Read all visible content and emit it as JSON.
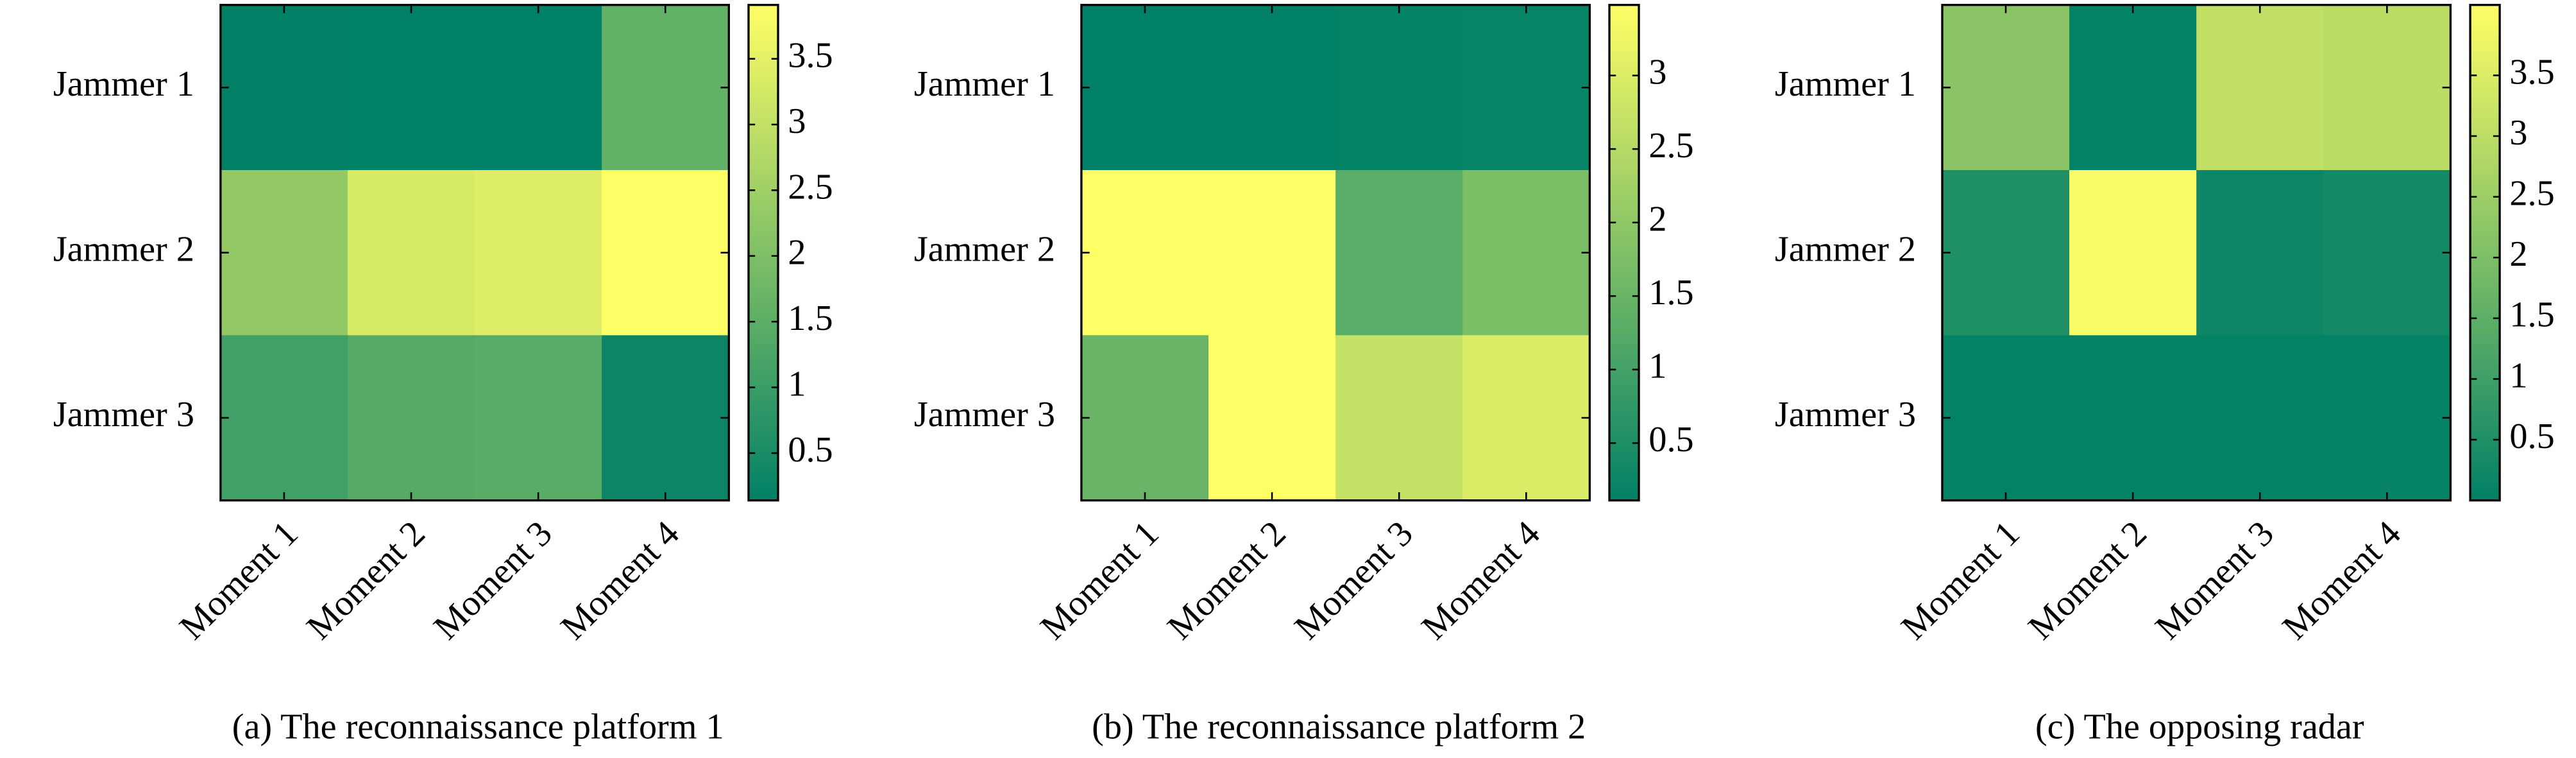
{
  "chart_data": [
    {
      "type": "heatmap",
      "caption": "(a) The reconnaissance platform 1",
      "colormap": "summer",
      "x_categories": [
        "Moment 1",
        "Moment 2",
        "Moment 3",
        "Moment 4"
      ],
      "y_categories": [
        "Jammer 1",
        "Jammer 2",
        "Jammer 3"
      ],
      "values": [
        [
          0.15,
          0.14,
          0.14,
          1.6
        ],
        [
          2.3,
          3.3,
          3.4,
          3.91
        ],
        [
          1.1,
          1.4,
          1.45,
          0.3
        ]
      ],
      "clim": [
        0.14,
        3.91
      ],
      "cticks": [
        0.5,
        1.0,
        1.5,
        2.0,
        2.5,
        3.0,
        3.5
      ]
    },
    {
      "type": "heatmap",
      "caption": "(b) The reconnaissance platform 2",
      "colormap": "summer",
      "x_categories": [
        "Moment 1",
        "Moment 2",
        "Moment 3",
        "Moment 4"
      ],
      "y_categories": [
        "Jammer 1",
        "Jammer 2",
        "Jammer 3"
      ],
      "values": [
        [
          0.11,
          0.11,
          0.15,
          0.2
        ],
        [
          3.48,
          3.48,
          1.3,
          1.75
        ],
        [
          1.5,
          3.48,
          2.7,
          3.0
        ]
      ],
      "clim": [
        0.11,
        3.48
      ],
      "cticks": [
        0.5,
        1.0,
        1.5,
        2.0,
        2.5,
        3.0
      ]
    },
    {
      "type": "heatmap",
      "caption": "(c) The opposing radar",
      "colormap": "summer",
      "x_categories": [
        "Moment 1",
        "Moment 2",
        "Moment 3",
        "Moment 4"
      ],
      "y_categories": [
        "Jammer 1",
        "Jammer 2",
        "Jammer 3"
      ],
      "values": [
        [
          2.2,
          0.05,
          3.1,
          3.0
        ],
        [
          0.5,
          4.0,
          0.2,
          0.3
        ],
        [
          0.05,
          0.05,
          0.05,
          0.1
        ]
      ],
      "clim": [
        0.0,
        4.08
      ],
      "cticks": [
        0.5,
        1.0,
        1.5,
        2.0,
        2.5,
        3.0,
        3.5
      ]
    }
  ]
}
